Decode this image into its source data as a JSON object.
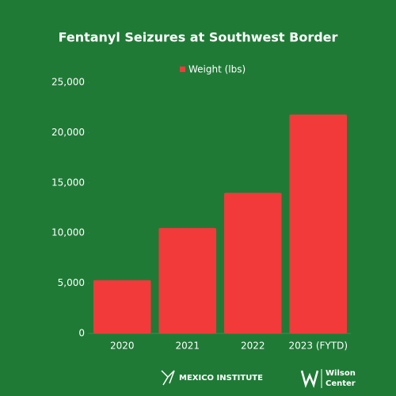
{
  "chart_data": {
    "type": "bar",
    "title": "Fentanyl Seizures at Southwest Border",
    "categories": [
      "2020",
      "2021",
      "2022",
      "2023 (FYTD)"
    ],
    "series": [
      {
        "name": "Weight (lbs)",
        "color": "#f23a3a",
        "values": [
          5300,
          10500,
          14000,
          21800
        ]
      }
    ],
    "ylim": [
      0,
      25000
    ],
    "yticks": [
      0,
      {
        "value": 5000,
        "label": "5,000"
      },
      {
        "value": 10000,
        "label": "10,000"
      },
      {
        "value": 15000,
        "label": "15,000"
      },
      {
        "value": 20000,
        "label": "20,000"
      },
      {
        "value": 25000,
        "label": "25,000"
      }
    ],
    "grid": false,
    "legend": "top"
  },
  "footer": {
    "left": "MEXICO INSTITUTE",
    "right": [
      "Wilson",
      "Center"
    ]
  }
}
